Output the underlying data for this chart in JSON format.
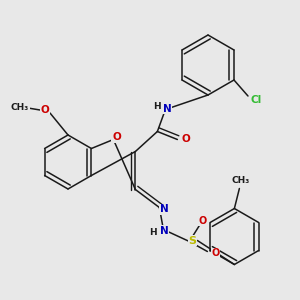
{
  "bg_color": "#e8e8e8",
  "bond_color": "#1a1a1a",
  "colors": {
    "C": "#1a1a1a",
    "N": "#0000bb",
    "O": "#cc0000",
    "S": "#bbbb00",
    "Cl": "#33bb33",
    "H": "#1a1a1a"
  }
}
